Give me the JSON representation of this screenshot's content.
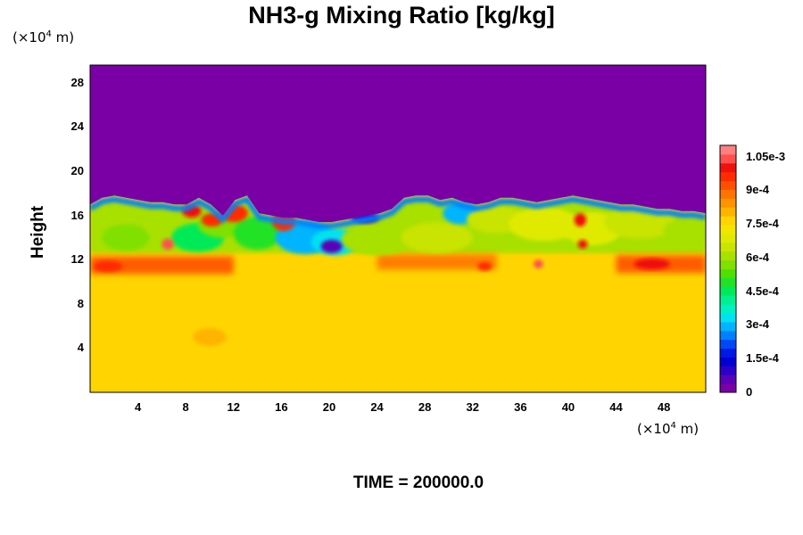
{
  "chart_data": {
    "type": "heatmap",
    "title": "NH3-g Mixing Ratio [kg/kg]",
    "xlabel": "",
    "ylabel": "Height",
    "x_unit_label": {
      "prefix": "(×10",
      "exp": "4",
      "suffix": " m)"
    },
    "y_unit_label": {
      "prefix": "(×10",
      "exp": "4",
      "suffix": " m)"
    },
    "footer": "TIME = 200000.0",
    "xlim": [
      0,
      51.5
    ],
    "ylim": [
      0,
      29.6
    ],
    "x_ticks": [
      4,
      8,
      12,
      16,
      20,
      24,
      28,
      32,
      36,
      40,
      44,
      48
    ],
    "y_ticks": [
      4,
      8,
      12,
      16,
      20,
      24,
      28
    ],
    "colorbar": {
      "range": [
        0,
        0.0011
      ],
      "tick_values": [
        0,
        0.00015,
        0.0003,
        0.00045,
        0.0006,
        0.00075,
        0.0009,
        0.00105
      ],
      "tick_labels": [
        "0",
        "1.5e-4",
        "3e-4",
        "4.5e-4",
        "6e-4",
        "7.5e-4",
        "9e-4",
        "1.05e-3"
      ],
      "colors": [
        "#7a00a6",
        "#5a00b8",
        "#2d00c8",
        "#0000d4",
        "#0018e6",
        "#0048f6",
        "#0080ff",
        "#00b4ff",
        "#00e2f0",
        "#00f0c4",
        "#00f090",
        "#00ea58",
        "#20e228",
        "#50e000",
        "#80e000",
        "#a8e000",
        "#c8e400",
        "#e0ea00",
        "#f2e600",
        "#ffd400",
        "#ffb400",
        "#ff9400",
        "#ff7400",
        "#ff5000",
        "#ff2c00",
        "#f01010",
        "#ff5050",
        "#ff8080"
      ]
    },
    "field": {
      "lower_layer_value": 0.00077,
      "upper_layer_value": 0.0,
      "interface_height": [
        17.0,
        17.6,
        17.8,
        17.6,
        17.4,
        17.2,
        17.2,
        17.0,
        17.0,
        17.6,
        17.0,
        16.0,
        17.4,
        17.8,
        16.2,
        16.0,
        15.8,
        15.8,
        15.6,
        15.4,
        15.4,
        15.6,
        15.8,
        16.0,
        16.2,
        16.6,
        17.6,
        17.8,
        17.8,
        17.4,
        17.6,
        17.2,
        17.0,
        17.2,
        17.6,
        17.6,
        17.4,
        17.2,
        17.4,
        17.6,
        17.8,
        17.6,
        17.4,
        17.2,
        17.0,
        17.0,
        16.8,
        16.6,
        16.6,
        16.4,
        16.4,
        16.2
      ],
      "features": [
        {
          "type": "band",
          "y_center": 11.5,
          "y_halfwidth": 0.8,
          "value": 0.00092,
          "x_range": [
            0,
            12
          ]
        },
        {
          "type": "band",
          "y_center": 11.8,
          "y_halfwidth": 0.7,
          "value": 0.00088,
          "x_range": [
            24,
            34
          ]
        },
        {
          "type": "band",
          "y_center": 11.6,
          "y_halfwidth": 0.8,
          "value": 0.00094,
          "x_range": [
            44,
            51.5
          ]
        },
        {
          "type": "blob",
          "x": 3.0,
          "y": 14.0,
          "rx": 2.0,
          "ry": 1.2,
          "value": 0.00058
        },
        {
          "type": "blob",
          "x": 7.0,
          "y": 15.2,
          "rx": 2.5,
          "ry": 1.5,
          "value": 0.0006
        },
        {
          "type": "blob",
          "x": 9.0,
          "y": 14.0,
          "rx": 2.2,
          "ry": 1.3,
          "value": 0.00045
        },
        {
          "type": "blob",
          "x": 11.0,
          "y": 15.2,
          "rx": 2.0,
          "ry": 1.2,
          "value": 0.00055
        },
        {
          "type": "blob",
          "x": 14.0,
          "y": 14.4,
          "rx": 2.0,
          "ry": 1.5,
          "value": 0.0005
        },
        {
          "type": "blob",
          "x": 18.0,
          "y": 14.0,
          "rx": 2.5,
          "ry": 1.5,
          "value": 0.0003
        },
        {
          "type": "blob",
          "x": 20.5,
          "y": 13.6,
          "rx": 2.0,
          "ry": 1.2,
          "value": 0.00035
        },
        {
          "type": "blob",
          "x": 24.0,
          "y": 13.8,
          "rx": 3.0,
          "ry": 1.4,
          "value": 0.0006
        },
        {
          "type": "blob",
          "x": 29.0,
          "y": 14.0,
          "rx": 3.0,
          "ry": 1.4,
          "value": 0.00065
        },
        {
          "type": "blob",
          "x": 31.0,
          "y": 16.2,
          "rx": 1.5,
          "ry": 1.0,
          "value": 0.0003
        },
        {
          "type": "blob",
          "x": 34.0,
          "y": 15.6,
          "rx": 2.5,
          "ry": 1.2,
          "value": 0.00065
        },
        {
          "type": "blob",
          "x": 38.0,
          "y": 15.2,
          "rx": 3.0,
          "ry": 1.5,
          "value": 0.0007
        },
        {
          "type": "blob",
          "x": 42.0,
          "y": 14.8,
          "rx": 2.5,
          "ry": 1.5,
          "value": 0.00068
        },
        {
          "type": "blob",
          "x": 46.0,
          "y": 15.4,
          "rx": 3.0,
          "ry": 1.5,
          "value": 0.00063
        },
        {
          "type": "blob",
          "x": 50.0,
          "y": 14.6,
          "rx": 2.0,
          "ry": 1.2,
          "value": 0.0006
        },
        {
          "type": "blob",
          "x": 20.2,
          "y": 13.2,
          "rx": 0.9,
          "ry": 0.6,
          "value": 5e-05
        },
        {
          "type": "blob",
          "x": 23.0,
          "y": 15.8,
          "rx": 1.2,
          "ry": 0.5,
          "value": 8e-05
        },
        {
          "type": "blob",
          "x": 16.2,
          "y": 15.5,
          "rx": 1.0,
          "ry": 0.9,
          "value": 0.00095
        },
        {
          "type": "blob",
          "x": 12.0,
          "y": 16.2,
          "rx": 1.2,
          "ry": 0.8,
          "value": 0.00098
        },
        {
          "type": "blob",
          "x": 8.5,
          "y": 16.4,
          "rx": 0.8,
          "ry": 0.6,
          "value": 0.001
        },
        {
          "type": "blob",
          "x": 10.2,
          "y": 15.6,
          "rx": 0.9,
          "ry": 0.6,
          "value": 0.00095
        },
        {
          "type": "blob",
          "x": 6.5,
          "y": 13.4,
          "rx": 0.5,
          "ry": 0.5,
          "value": 0.00105
        },
        {
          "type": "blob",
          "x": 41.0,
          "y": 15.6,
          "rx": 0.5,
          "ry": 0.6,
          "value": 0.001
        },
        {
          "type": "blob",
          "x": 41.2,
          "y": 13.4,
          "rx": 0.4,
          "ry": 0.4,
          "value": 0.001
        },
        {
          "type": "blob",
          "x": 37.5,
          "y": 11.6,
          "rx": 0.4,
          "ry": 0.4,
          "value": 0.00105
        },
        {
          "type": "blob",
          "x": 1.5,
          "y": 11.4,
          "rx": 1.2,
          "ry": 0.5,
          "value": 0.00098
        },
        {
          "type": "blob",
          "x": 47.0,
          "y": 11.6,
          "rx": 1.5,
          "ry": 0.5,
          "value": 0.001
        },
        {
          "type": "blob",
          "x": 33.0,
          "y": 11.4,
          "rx": 0.6,
          "ry": 0.4,
          "value": 0.00098
        },
        {
          "type": "blob",
          "x": 10.0,
          "y": 5.0,
          "rx": 1.4,
          "ry": 0.8,
          "value": 0.00082
        }
      ]
    }
  }
}
